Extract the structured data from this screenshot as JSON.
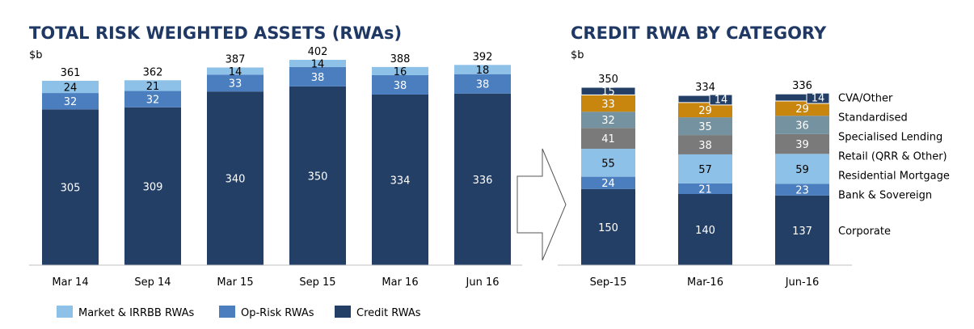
{
  "chart_data": [
    {
      "type": "bar",
      "stacked": true,
      "title": "TOTAL RISK WEIGHTED ASSETS (RWAs)",
      "unit_label": "$b",
      "categories": [
        "Mar 14",
        "Sep 14",
        "Mar 15",
        "Sep 15",
        "Mar 16",
        "Jun 16"
      ],
      "series": [
        {
          "name": "Credit RWAs",
          "color": "#243f66",
          "values": [
            305,
            309,
            340,
            350,
            334,
            336
          ]
        },
        {
          "name": "Op-Risk RWAs",
          "color": "#4a7ebf",
          "values": [
            32,
            32,
            33,
            38,
            38,
            38
          ]
        },
        {
          "name": "Market & IRRBB RWAs",
          "color": "#8ec1e8",
          "values": [
            24,
            21,
            14,
            14,
            16,
            18
          ]
        }
      ],
      "totals": [
        361,
        362,
        387,
        402,
        388,
        392
      ],
      "ylim": [
        0,
        402
      ],
      "legend_position": "bottom"
    },
    {
      "type": "bar",
      "stacked": true,
      "title": "CREDIT RWA BY CATEGORY",
      "unit_label": "$b",
      "categories": [
        "Sep-15",
        "Mar-16",
        "Jun-16"
      ],
      "series": [
        {
          "name": "Corporate",
          "color": "#243f66",
          "values": [
            150,
            140,
            137
          ]
        },
        {
          "name": "Bank & Sovereign",
          "color": "#4a7ebf",
          "values": [
            24,
            21,
            23
          ]
        },
        {
          "name": "Residential Mortgage",
          "color": "#8ec1e8",
          "values": [
            55,
            57,
            59
          ]
        },
        {
          "name": "Retail (QRR & Other)",
          "color": "#7a7a7a",
          "values": [
            41,
            38,
            39
          ]
        },
        {
          "name": "Specialised Lending",
          "color": "#7592a0",
          "values": [
            32,
            35,
            36
          ]
        },
        {
          "name": "Standardised",
          "color": "#c9860e",
          "values": [
            33,
            29,
            29
          ]
        },
        {
          "name": "CVA/Other",
          "color": "#243f66",
          "values": [
            15,
            14,
            14
          ]
        }
      ],
      "totals": [
        350,
        334,
        336
      ],
      "ylim": [
        0,
        350
      ],
      "legend_position": "right"
    }
  ]
}
